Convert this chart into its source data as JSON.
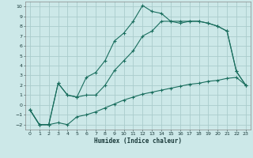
{
  "xlabel": "Humidex (Indice chaleur)",
  "background_color": "#cce8e8",
  "grid_color": "#aacccc",
  "line_color": "#1a6e5e",
  "xlim": [
    -0.5,
    23.5
  ],
  "ylim": [
    -2.5,
    10.5
  ],
  "xticks": [
    0,
    1,
    2,
    3,
    4,
    5,
    6,
    7,
    8,
    9,
    10,
    11,
    12,
    13,
    14,
    15,
    16,
    17,
    18,
    19,
    20,
    21,
    22,
    23
  ],
  "yticks": [
    -2,
    -1,
    0,
    1,
    2,
    3,
    4,
    5,
    6,
    7,
    8,
    9,
    10
  ],
  "series1_x": [
    0,
    1,
    2,
    3,
    4,
    5,
    6,
    7,
    8,
    9,
    10,
    11,
    12,
    13,
    14,
    15,
    16,
    17,
    18,
    19,
    20,
    21,
    22,
    23
  ],
  "series1_y": [
    -0.5,
    -2.0,
    -2.0,
    -1.8,
    -2.0,
    -1.2,
    -1.0,
    -0.7,
    -0.3,
    0.1,
    0.5,
    0.8,
    1.1,
    1.3,
    1.5,
    1.7,
    1.9,
    2.1,
    2.2,
    2.4,
    2.5,
    2.7,
    2.8,
    2.0
  ],
  "series2_x": [
    0,
    1,
    2,
    3,
    4,
    5,
    6,
    7,
    8,
    9,
    10,
    11,
    12,
    13,
    14,
    15,
    16,
    17,
    18,
    19,
    20,
    21,
    22,
    23
  ],
  "series2_y": [
    -0.5,
    -2.0,
    -2.0,
    2.2,
    1.0,
    0.8,
    2.8,
    3.3,
    4.5,
    6.5,
    7.3,
    8.5,
    10.1,
    9.5,
    9.3,
    8.5,
    8.3,
    8.5,
    8.5,
    8.3,
    8.0,
    7.5,
    3.4,
    2.0
  ],
  "series3_x": [
    0,
    1,
    2,
    3,
    4,
    5,
    6,
    7,
    8,
    9,
    10,
    11,
    12,
    13,
    14,
    15,
    16,
    17,
    18,
    19,
    20,
    21,
    22,
    23
  ],
  "series3_y": [
    -0.5,
    -2.0,
    -2.0,
    2.2,
    1.0,
    0.8,
    1.0,
    1.0,
    2.0,
    3.5,
    4.5,
    5.5,
    7.0,
    7.5,
    8.5,
    8.5,
    8.5,
    8.5,
    8.5,
    8.3,
    8.0,
    7.5,
    3.4,
    2.0
  ],
  "xlabel_fontsize": 5.5,
  "tick_fontsize": 4.5
}
